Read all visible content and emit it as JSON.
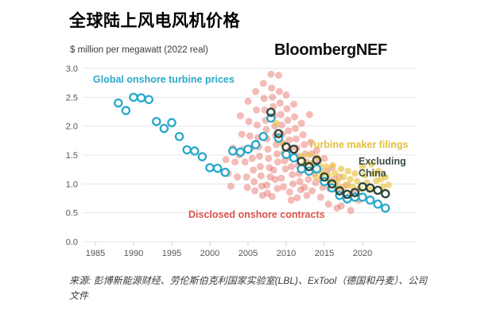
{
  "header": {
    "title": "全球陆上风电风机价格",
    "subtitle": "$ million per megawatt (2022 real)",
    "logo": "BloombergNEF"
  },
  "footer": {
    "source": "来源: 彭博新能源财经、劳伦斯伯克利国家实验室(LBL)、ExTool（德国和丹麦）、公司文件"
  },
  "colors": {
    "background": "#ffffff",
    "grid": "#e7e7e7",
    "axis_text": "#555555",
    "title": "#000000",
    "logo": "#101010"
  },
  "chart_data": {
    "type": "scatter",
    "title": "全球陆上风电风机价格",
    "ylabel": "$ million per megawatt (2022 real)",
    "xlabel": "",
    "xlim": [
      1984,
      2025
    ],
    "ylim": [
      0.0,
      3.0
    ],
    "yticks": [
      0.0,
      0.5,
      1.0,
      1.5,
      2.0,
      2.5,
      3.0
    ],
    "xticks": [
      1985,
      1990,
      1995,
      2000,
      2005,
      2010,
      2015,
      2020
    ],
    "grid": "horizontal",
    "legend_position": "inline-annotations",
    "series": [
      {
        "name": "Disclosed onshore contracts",
        "marker": "filled-circle",
        "color": "#e2574e",
        "label_color": "#d9534b",
        "opacity": 0.4,
        "radius": 4.5,
        "points": [
          [
            2002.1,
            1.42
          ],
          [
            2002.4,
            1.18
          ],
          [
            2002.75,
            0.96
          ],
          [
            2003.0,
            1.62
          ],
          [
            2003.3,
            1.38
          ],
          [
            2003.6,
            1.12
          ],
          [
            2003.85,
            1.5
          ],
          [
            2004.0,
            2.18
          ],
          [
            2004.2,
            1.86
          ],
          [
            2004.4,
            1.6
          ],
          [
            2004.6,
            1.38
          ],
          [
            2004.8,
            1.12
          ],
          [
            2004.9,
            0.94
          ],
          [
            2005.0,
            2.43
          ],
          [
            2005.1,
            2.08
          ],
          [
            2005.25,
            1.83
          ],
          [
            2005.4,
            1.62
          ],
          [
            2005.55,
            1.44
          ],
          [
            2005.7,
            1.24
          ],
          [
            2005.8,
            1.04
          ],
          [
            2005.9,
            0.88
          ],
          [
            2006.0,
            2.6
          ],
          [
            2006.1,
            2.28
          ],
          [
            2006.2,
            2.02
          ],
          [
            2006.3,
            1.8
          ],
          [
            2006.4,
            1.64
          ],
          [
            2006.5,
            1.48
          ],
          [
            2006.6,
            1.3
          ],
          [
            2006.7,
            1.14
          ],
          [
            2006.8,
            0.96
          ],
          [
            2006.9,
            0.8
          ],
          [
            2007.0,
            2.74
          ],
          [
            2007.1,
            2.48
          ],
          [
            2007.2,
            2.28
          ],
          [
            2007.3,
            2.1
          ],
          [
            2007.4,
            1.94
          ],
          [
            2007.5,
            1.78
          ],
          [
            2007.6,
            1.6
          ],
          [
            2007.7,
            1.44
          ],
          [
            2007.8,
            1.28
          ],
          [
            2007.9,
            1.12
          ],
          [
            2007.45,
            0.98
          ],
          [
            2007.55,
            0.84
          ],
          [
            2008.0,
            2.9
          ],
          [
            2008.1,
            2.66
          ],
          [
            2008.2,
            2.5
          ],
          [
            2008.3,
            2.34
          ],
          [
            2008.4,
            2.18
          ],
          [
            2008.5,
            2.0
          ],
          [
            2008.6,
            1.84
          ],
          [
            2008.7,
            1.68
          ],
          [
            2008.8,
            1.52
          ],
          [
            2008.9,
            1.38
          ],
          [
            2008.35,
            1.24
          ],
          [
            2008.55,
            1.08
          ],
          [
            2008.85,
            0.92
          ],
          [
            2008.15,
            0.78
          ],
          [
            2009.0,
            2.88
          ],
          [
            2009.1,
            2.6
          ],
          [
            2009.2,
            2.4
          ],
          [
            2009.3,
            2.2
          ],
          [
            2009.4,
            2.02
          ],
          [
            2009.5,
            1.86
          ],
          [
            2009.6,
            1.7
          ],
          [
            2009.7,
            1.54
          ],
          [
            2009.8,
            1.4
          ],
          [
            2009.9,
            1.26
          ],
          [
            2009.35,
            1.1
          ],
          [
            2009.65,
            0.95
          ],
          [
            2010.0,
            2.54
          ],
          [
            2010.1,
            2.3
          ],
          [
            2010.2,
            2.1
          ],
          [
            2010.3,
            1.92
          ],
          [
            2010.4,
            1.76
          ],
          [
            2010.5,
            1.6
          ],
          [
            2010.6,
            1.46
          ],
          [
            2010.7,
            1.3
          ],
          [
            2010.8,
            1.16
          ],
          [
            2010.9,
            1.0
          ],
          [
            2010.45,
            0.86
          ],
          [
            2010.65,
            0.72
          ],
          [
            2011.0,
            2.38
          ],
          [
            2011.1,
            2.16
          ],
          [
            2011.2,
            1.96
          ],
          [
            2011.3,
            1.78
          ],
          [
            2011.4,
            1.62
          ],
          [
            2011.5,
            1.48
          ],
          [
            2011.6,
            1.32
          ],
          [
            2011.7,
            1.18
          ],
          [
            2011.8,
            1.04
          ],
          [
            2011.9,
            0.9
          ],
          [
            2011.45,
            0.76
          ],
          [
            2012.0,
            2.05
          ],
          [
            2012.2,
            1.85
          ],
          [
            2012.35,
            1.68
          ],
          [
            2012.5,
            1.52
          ],
          [
            2012.65,
            1.38
          ],
          [
            2012.8,
            1.22
          ],
          [
            2012.9,
            1.08
          ],
          [
            2012.4,
            0.94
          ],
          [
            2012.7,
            0.8
          ],
          [
            2013.05,
            2.2
          ],
          [
            2013.2,
            1.72
          ],
          [
            2013.35,
            1.52
          ],
          [
            2013.5,
            1.34
          ],
          [
            2013.7,
            1.18
          ],
          [
            2013.85,
            1.02
          ],
          [
            2013.4,
            0.88
          ],
          [
            2014.0,
            1.58
          ],
          [
            2014.2,
            1.4
          ],
          [
            2014.4,
            1.24
          ],
          [
            2014.6,
            1.08
          ],
          [
            2014.8,
            0.94
          ],
          [
            2014.5,
            0.77
          ],
          [
            2015.0,
            1.44
          ],
          [
            2015.3,
            1.22
          ],
          [
            2015.5,
            1.06
          ],
          [
            2015.7,
            0.92
          ],
          [
            2015.55,
            0.65
          ],
          [
            2016.0,
            1.28
          ],
          [
            2016.3,
            1.08
          ],
          [
            2016.6,
            0.92
          ],
          [
            2016.65,
            0.58
          ],
          [
            2017.0,
            1.12
          ],
          [
            2017.4,
            0.94
          ],
          [
            2017.2,
            0.62
          ],
          [
            2018.0,
            0.98
          ],
          [
            2018.4,
            0.8
          ],
          [
            2018.45,
            0.54
          ],
          [
            2019.0,
            0.88
          ],
          [
            2019.5,
            0.72
          ]
        ]
      },
      {
        "name": "Turbine maker filings",
        "marker": "filled-circle",
        "color": "#e9c84e",
        "label_color": "#e5c03c",
        "opacity": 0.7,
        "radius": 4.2,
        "points": [
          [
            2008.7,
            2.05
          ],
          [
            2009.5,
            1.7
          ],
          [
            2012.0,
            1.48
          ],
          [
            2012.4,
            1.35
          ],
          [
            2012.8,
            1.22
          ],
          [
            2013.0,
            1.5
          ],
          [
            2013.3,
            1.36
          ],
          [
            2013.6,
            1.24
          ],
          [
            2013.9,
            1.12
          ],
          [
            2014.1,
            1.46
          ],
          [
            2014.4,
            1.32
          ],
          [
            2014.7,
            1.18
          ],
          [
            2014.9,
            1.06
          ],
          [
            2015.2,
            1.3
          ],
          [
            2015.5,
            1.16
          ],
          [
            2015.8,
            1.04
          ],
          [
            2016.1,
            1.32
          ],
          [
            2016.4,
            1.18
          ],
          [
            2016.7,
            1.05
          ],
          [
            2016.9,
            0.94
          ],
          [
            2017.2,
            1.26
          ],
          [
            2017.5,
            1.12
          ],
          [
            2017.8,
            0.98
          ],
          [
            2018.1,
            1.22
          ],
          [
            2018.4,
            1.08
          ],
          [
            2018.7,
            0.95
          ],
          [
            2019.0,
            1.18
          ],
          [
            2019.3,
            1.05
          ],
          [
            2019.6,
            0.92
          ],
          [
            2020.0,
            1.3
          ],
          [
            2020.3,
            1.15
          ],
          [
            2020.6,
            1.02
          ],
          [
            2020.9,
            0.9
          ],
          [
            2021.2,
            1.34
          ],
          [
            2021.5,
            1.18
          ],
          [
            2021.8,
            1.05
          ],
          [
            2022.1,
            1.22
          ],
          [
            2022.4,
            1.08
          ],
          [
            2022.7,
            0.95
          ],
          [
            2023.0,
            1.12
          ],
          [
            2023.4,
            0.98
          ]
        ]
      },
      {
        "name": "Global onshore turbine prices",
        "marker": "open-circle",
        "color": "#29a9c9",
        "label_color": "#2baac9",
        "fill": "#ffffff",
        "opacity": 1,
        "radius": 4.6,
        "points": [
          [
            1988,
            2.4
          ],
          [
            1989,
            2.27
          ],
          [
            1990,
            2.5
          ],
          [
            1991,
            2.49
          ],
          [
            1992,
            2.46
          ],
          [
            1993,
            2.08
          ],
          [
            1994,
            1.96
          ],
          [
            1995,
            2.06
          ],
          [
            1996,
            1.82
          ],
          [
            1997,
            1.59
          ],
          [
            1998,
            1.57
          ],
          [
            1999,
            1.47
          ],
          [
            2000,
            1.28
          ],
          [
            2001,
            1.27
          ],
          [
            2002,
            1.2
          ],
          [
            2003,
            1.57
          ],
          [
            2004,
            1.55
          ],
          [
            2005,
            1.6
          ],
          [
            2006,
            1.68
          ],
          [
            2007,
            1.82
          ],
          [
            2008,
            2.14
          ],
          [
            2009,
            1.79
          ],
          [
            2010,
            1.51
          ],
          [
            2011,
            1.45
          ],
          [
            2012,
            1.26
          ],
          [
            2013,
            1.22
          ],
          [
            2014,
            1.26
          ],
          [
            2015,
            1.04
          ],
          [
            2016,
            0.93
          ],
          [
            2017,
            0.8
          ],
          [
            2018,
            0.74
          ],
          [
            2019,
            0.77
          ],
          [
            2020,
            0.77
          ],
          [
            2021,
            0.72
          ],
          [
            2022,
            0.65
          ],
          [
            2023,
            0.58
          ]
        ]
      },
      {
        "name": "Excluding China",
        "marker": "open-circle",
        "color": "#2c4437",
        "label_color": "#3d4d42",
        "fill": "none",
        "opacity": 1,
        "radius": 4.6,
        "points": [
          [
            2008,
            2.24
          ],
          [
            2009,
            1.87
          ],
          [
            2010,
            1.64
          ],
          [
            2011,
            1.6
          ],
          [
            2012,
            1.39
          ],
          [
            2013,
            1.3
          ],
          [
            2014,
            1.41
          ],
          [
            2015,
            1.12
          ],
          [
            2016,
            1.0
          ],
          [
            2017,
            0.88
          ],
          [
            2018,
            0.82
          ],
          [
            2019,
            0.85
          ],
          [
            2020,
            0.95
          ],
          [
            2021,
            0.93
          ],
          [
            2022,
            0.89
          ],
          [
            2023,
            0.83
          ]
        ]
      }
    ]
  }
}
